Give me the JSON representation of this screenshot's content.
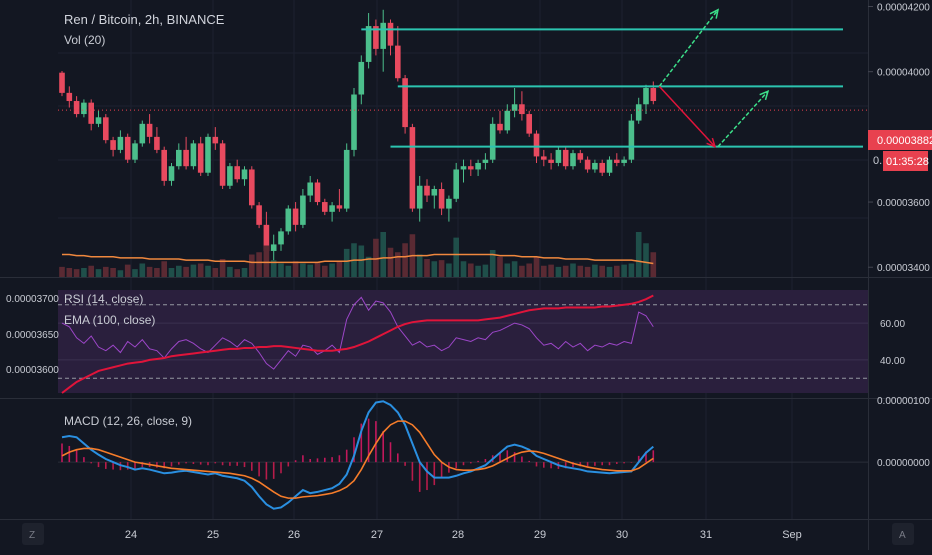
{
  "header": {
    "title": "Ren / Bitcoin, 2h, BINANCE",
    "volume_label": "Vol (20)"
  },
  "price_axis": {
    "ticks": [
      "0.00004200",
      "0.00004000",
      "0.00003600",
      "0.00003400"
    ],
    "current_price": "0.00003882",
    "countdown": "01:35:28",
    "countdown_prefix": "0."
  },
  "rsi": {
    "label": "RSI (14, close)",
    "ema_label": "EMA (100, close)",
    "right_ticks": [
      "60.00",
      "40.00"
    ],
    "left_ticks": [
      "0.00003700",
      "0.00003650",
      "0.00003600"
    ]
  },
  "macd": {
    "label": "MACD (12, 26, close, 9)",
    "ticks": [
      "0.00000100",
      "0.00000000"
    ]
  },
  "time_axis": {
    "labels": [
      "24",
      "25",
      "26",
      "27",
      "28",
      "29",
      "30",
      "31",
      "Sep"
    ]
  },
  "footer": {
    "left_button": "Z",
    "right_button": "A"
  },
  "colors": {
    "up": "#26a69a",
    "down": "#ef5350",
    "up_strong": "#4cbf8c",
    "down_strong": "#e84a5f",
    "rsi_line": "#9c46c8",
    "ema_line": "#e0143a",
    "macd_line": "#2a8fe0",
    "signal_line": "#f57c2a",
    "drawing_cyan": "#2cc4b0",
    "drawing_green": "#3ce08a",
    "drawing_red": "#e0143a",
    "current_price_bg": "#e8414f"
  },
  "chart_data": [
    {
      "type": "candlestick",
      "title": "Ren / Bitcoin, 2h, BINANCE",
      "x_range": [
        "23",
        "Sep 1"
      ],
      "ylim": [
        3.37e-05,
        4.22e-05
      ],
      "current_price": 3.882e-05,
      "ohlc": [
        [
          3.997e-05,
          4.002e-05,
          3.925e-05,
          3.935e-05
        ],
        [
          3.935e-05,
          3.955e-05,
          3.89e-05,
          3.91e-05
        ],
        [
          3.91e-05,
          3.925e-05,
          3.86e-05,
          3.87e-05
        ],
        [
          3.87e-05,
          3.915e-05,
          3.86e-05,
          3.905e-05
        ],
        [
          3.905e-05,
          3.915e-05,
          3.82e-05,
          3.84e-05
        ],
        [
          3.84e-05,
          3.88e-05,
          3.83e-05,
          3.86e-05
        ],
        [
          3.86e-05,
          3.87e-05,
          3.78e-05,
          3.79e-05
        ],
        [
          3.79e-05,
          3.8e-05,
          3.74e-05,
          3.76e-05
        ],
        [
          3.76e-05,
          3.82e-05,
          3.75e-05,
          3.8e-05
        ],
        [
          3.8e-05,
          3.81e-05,
          3.72e-05,
          3.73e-05
        ],
        [
          3.73e-05,
          3.79e-05,
          3.72e-05,
          3.78e-05
        ],
        [
          3.78e-05,
          3.85e-05,
          3.77e-05,
          3.84e-05
        ],
        [
          3.84e-05,
          3.87e-05,
          3.78e-05,
          3.8e-05
        ],
        [
          3.8e-05,
          3.83e-05,
          3.75e-05,
          3.76e-05
        ],
        [
          3.76e-05,
          3.77e-05,
          3.65e-05,
          3.665e-05
        ],
        [
          3.665e-05,
          3.72e-05,
          3.65e-05,
          3.71e-05
        ],
        [
          3.71e-05,
          3.78e-05,
          3.7e-05,
          3.76e-05
        ],
        [
          3.76e-05,
          3.8e-05,
          3.7e-05,
          3.71e-05
        ],
        [
          3.71e-05,
          3.79e-05,
          3.7e-05,
          3.78e-05
        ],
        [
          3.78e-05,
          3.8e-05,
          3.68e-05,
          3.69e-05
        ],
        [
          3.69e-05,
          3.81e-05,
          3.68e-05,
          3.8e-05
        ],
        [
          3.8e-05,
          3.83e-05,
          3.76e-05,
          3.78e-05
        ],
        [
          3.78e-05,
          3.79e-05,
          3.64e-05,
          3.65e-05
        ],
        [
          3.65e-05,
          3.72e-05,
          3.64e-05,
          3.71e-05
        ],
        [
          3.71e-05,
          3.73e-05,
          3.66e-05,
          3.67e-05
        ],
        [
          3.67e-05,
          3.71e-05,
          3.65e-05,
          3.7e-05
        ],
        [
          3.7e-05,
          3.71e-05,
          3.58e-05,
          3.59e-05
        ],
        [
          3.59e-05,
          3.6e-05,
          3.52e-05,
          3.53e-05
        ],
        [
          3.53e-05,
          3.57e-05,
          3.44e-05,
          3.45e-05
        ],
        [
          3.45e-05,
          3.5e-05,
          3.4e-05,
          3.47e-05
        ],
        [
          3.47e-05,
          3.52e-05,
          3.45e-05,
          3.51e-05
        ],
        [
          3.51e-05,
          3.59e-05,
          3.5e-05,
          3.58e-05
        ],
        [
          3.58e-05,
          3.6e-05,
          3.51e-05,
          3.53e-05
        ],
        [
          3.53e-05,
          3.64e-05,
          3.52e-05,
          3.62e-05
        ],
        [
          3.62e-05,
          3.68e-05,
          3.6e-05,
          3.66e-05
        ],
        [
          3.66e-05,
          3.67e-05,
          3.59e-05,
          3.6e-05
        ],
        [
          3.6e-05,
          3.61e-05,
          3.56e-05,
          3.57e-05
        ],
        [
          3.57e-05,
          3.6e-05,
          3.54e-05,
          3.59e-05
        ],
        [
          3.59e-05,
          3.64e-05,
          3.57e-05,
          3.58e-05
        ],
        [
          3.58e-05,
          3.78e-05,
          3.57e-05,
          3.76e-05
        ],
        [
          3.76e-05,
          3.95e-05,
          3.74e-05,
          3.93e-05
        ],
        [
          3.93e-05,
          4.05e-05,
          3.9e-05,
          4.03e-05
        ],
        [
          4.03e-05,
          4.18e-05,
          4.01e-05,
          4.14e-05
        ],
        [
          4.14e-05,
          4.16e-05,
          4.05e-05,
          4.07e-05
        ],
        [
          4.07e-05,
          4.19e-05,
          4e-05,
          4.15e-05
        ],
        [
          4.15e-05,
          4.16e-05,
          4.05e-05,
          4.08e-05
        ],
        [
          4.08e-05,
          4.14e-05,
          3.97e-05,
          3.98e-05
        ],
        [
          3.98e-05,
          3.99e-05,
          3.81e-05,
          3.83e-05
        ],
        [
          3.83e-05,
          3.84e-05,
          3.57e-05,
          3.58e-05
        ],
        [
          3.58e-05,
          3.68e-05,
          3.54e-05,
          3.65e-05
        ],
        [
          3.65e-05,
          3.67e-05,
          3.6e-05,
          3.62e-05
        ],
        [
          3.62e-05,
          3.65e-05,
          3.58e-05,
          3.64e-05
        ],
        [
          3.64e-05,
          3.66e-05,
          3.56e-05,
          3.58e-05
        ],
        [
          3.58e-05,
          3.62e-05,
          3.54e-05,
          3.61e-05
        ],
        [
          3.61e-05,
          3.72e-05,
          3.6e-05,
          3.7e-05
        ],
        [
          3.7e-05,
          3.73e-05,
          3.66e-05,
          3.71e-05
        ],
        [
          3.71e-05,
          3.73e-05,
          3.68e-05,
          3.7e-05
        ],
        [
          3.7e-05,
          3.73e-05,
          3.68e-05,
          3.72e-05
        ],
        [
          3.72e-05,
          3.75e-05,
          3.7e-05,
          3.73e-05
        ],
        [
          3.73e-05,
          3.86e-05,
          3.72e-05,
          3.84e-05
        ],
        [
          3.84e-05,
          3.88e-05,
          3.81e-05,
          3.82e-05
        ],
        [
          3.82e-05,
          3.9e-05,
          3.81e-05,
          3.88e-05
        ],
        [
          3.88e-05,
          3.95e-05,
          3.86e-05,
          3.9e-05
        ],
        [
          3.9e-05,
          3.94e-05,
          3.85e-05,
          3.87e-05
        ],
        [
          3.87e-05,
          3.88e-05,
          3.8e-05,
          3.81e-05
        ],
        [
          3.81e-05,
          3.82e-05,
          3.72e-05,
          3.74e-05
        ],
        [
          3.74e-05,
          3.76e-05,
          3.71e-05,
          3.73e-05
        ],
        [
          3.73e-05,
          3.75e-05,
          3.7e-05,
          3.72e-05
        ],
        [
          3.72e-05,
          3.77e-05,
          3.71e-05,
          3.76e-05
        ],
        [
          3.76e-05,
          3.77e-05,
          3.7e-05,
          3.71e-05
        ],
        [
          3.71e-05,
          3.76e-05,
          3.7e-05,
          3.75e-05
        ],
        [
          3.75e-05,
          3.76e-05,
          3.72e-05,
          3.73e-05
        ],
        [
          3.73e-05,
          3.74e-05,
          3.69e-05,
          3.7e-05
        ],
        [
          3.7e-05,
          3.73e-05,
          3.69e-05,
          3.72e-05
        ],
        [
          3.72e-05,
          3.73e-05,
          3.68e-05,
          3.69e-05
        ],
        [
          3.69e-05,
          3.74e-05,
          3.68e-05,
          3.73e-05
        ],
        [
          3.73e-05,
          3.75e-05,
          3.71e-05,
          3.72e-05
        ],
        [
          3.72e-05,
          3.74e-05,
          3.71e-05,
          3.73e-05
        ],
        [
          3.73e-05,
          3.87e-05,
          3.72e-05,
          3.85e-05
        ],
        [
          3.85e-05,
          3.92e-05,
          3.84e-05,
          3.9e-05
        ],
        [
          3.9e-05,
          3.96e-05,
          3.87e-05,
          3.95e-05
        ],
        [
          3.95e-05,
          3.97e-05,
          3.9e-05,
          3.91e-05
        ]
      ],
      "volume": [
        9,
        8,
        7,
        8,
        10,
        7,
        9,
        8,
        6,
        11,
        7,
        12,
        9,
        8,
        14,
        8,
        10,
        9,
        11,
        12,
        10,
        8,
        16,
        9,
        7,
        8,
        20,
        22,
        28,
        15,
        12,
        10,
        14,
        12,
        11,
        13,
        10,
        12,
        14,
        25,
        30,
        28,
        18,
        34,
        40,
        26,
        22,
        30,
        38,
        20,
        16,
        14,
        15,
        12,
        35,
        14,
        12,
        10,
        11,
        24,
        18,
        12,
        14,
        10,
        12,
        18,
        10,
        11,
        9,
        10,
        12,
        10,
        9,
        11,
        10,
        9,
        10,
        11,
        12,
        40,
        30,
        22
      ],
      "volume_ma": [
        20,
        20,
        19,
        19,
        18,
        18,
        18,
        18,
        17,
        17,
        17,
        17,
        16,
        16,
        16,
        16,
        16,
        15,
        15,
        15,
        15,
        14,
        14,
        14,
        14,
        14,
        13,
        13,
        13,
        13,
        13,
        13,
        13,
        13,
        13,
        13,
        14,
        14,
        14,
        14,
        15,
        15,
        16,
        16,
        17,
        17,
        18,
        18,
        19,
        19,
        19,
        20,
        20,
        20,
        20,
        20,
        20,
        20,
        20,
        20,
        19,
        19,
        19,
        18,
        18,
        18,
        17,
        17,
        17,
        16,
        16,
        16,
        16,
        15,
        15,
        15,
        15,
        15,
        15,
        14,
        13,
        12
      ],
      "drawings": {
        "horizontal_levels": [
          4.13e-05,
          3.955e-05,
          3.77e-05
        ],
        "projection_up": [
          [
            3.955e-05,
            4.19e-05
          ]
        ],
        "projection_down": [
          [
            3.955e-05,
            3.77e-05
          ]
        ],
        "projection_up_from_support": [
          [
            3.77e-05,
            3.94e-05
          ]
        ]
      }
    },
    {
      "type": "line",
      "title": "RSI (14, close)",
      "ylim": [
        22,
        78
      ],
      "levels": [
        70,
        30
      ],
      "series": [
        {
          "name": "RSI (14, close)",
          "values": [
            60,
            58,
            52,
            49,
            53,
            47,
            45,
            48,
            44,
            50,
            47,
            51,
            46,
            45,
            41,
            46,
            50,
            51,
            49,
            46,
            44,
            48,
            52,
            50,
            47,
            51,
            49,
            44,
            38,
            35,
            40,
            45,
            42,
            48,
            47,
            43,
            45,
            48,
            44,
            62,
            70,
            74,
            67,
            72,
            71,
            66,
            58,
            53,
            48,
            50,
            47,
            48,
            45,
            47,
            52,
            51,
            50,
            52,
            51,
            55,
            56,
            58,
            60,
            59,
            57,
            52,
            48,
            49,
            46,
            50,
            47,
            49,
            45,
            48,
            47,
            49,
            48,
            50,
            49,
            66,
            64,
            58
          ]
        },
        {
          "name": "EMA (100, close)",
          "values": [
            22,
            25,
            28,
            30,
            32,
            34,
            35,
            36,
            37,
            38,
            38.5,
            39,
            40,
            40.5,
            41,
            42,
            42.5,
            43,
            43.5,
            44,
            44.5,
            45,
            45.5,
            46,
            46,
            46.5,
            46.5,
            47,
            47,
            47.5,
            47.5,
            47,
            46.5,
            46,
            45.5,
            45,
            45,
            45,
            45.5,
            46,
            47,
            48.5,
            50,
            52,
            54,
            56,
            58,
            59.5,
            60.5,
            61,
            61.5,
            61.5,
            61.5,
            61.5,
            61.5,
            61.5,
            61.5,
            61.5,
            62,
            62.5,
            63,
            64,
            65,
            66,
            67,
            67.5,
            68,
            68,
            68,
            68.5,
            68.5,
            68.5,
            68.5,
            68.5,
            69,
            69,
            69.5,
            70,
            70.5,
            71.5,
            73,
            75
          ]
        }
      ]
    },
    {
      "type": "line",
      "title": "MACD (12, 26, close, 9)",
      "ylim": [
        -9e-07,
        1e-06
      ],
      "series": [
        {
          "name": "MACD",
          "values": [
            4e-07,
            4.2e-07,
            4e-07,
            3e-07,
            2e-07,
            1.2e-07,
            5e-08,
            0.0,
            -5e-08,
            -8e-08,
            -1.2e-07,
            -1e-07,
            -1.2e-07,
            -1.5e-07,
            -1.8e-07,
            -1.7e-07,
            -1.5e-07,
            -1.4e-07,
            -1.6e-07,
            -1.8e-07,
            -2e-07,
            -1.8e-07,
            -2.2e-07,
            -2.4e-07,
            -2.6e-07,
            -3e-07,
            -4e-07,
            -5.5e-07,
            -6.8e-07,
            -7.5e-07,
            -7.3e-07,
            -6.5e-07,
            -5.5e-07,
            -4.5e-07,
            -5e-07,
            -4.8e-07,
            -4.5e-07,
            -4.2e-07,
            -3.5e-07,
            -2e-07,
            1e-07,
            5e-07,
            8e-07,
            9.6e-07,
            9.8e-07,
            9.2e-07,
            8e-07,
            6e-07,
            3e-07,
            0.0,
            -1.5e-07,
            -2.5e-07,
            -2.5e-07,
            -2.5e-07,
            -2.2e-07,
            -1.8e-07,
            -1.5e-07,
            -1e-07,
            -5e-08,
            5e-08,
            1.5e-07,
            2.5e-07,
            2.8e-07,
            2.5e-07,
            2e-07,
            1e-07,
            5e-08,
            0.0,
            -5e-08,
            -8e-08,
            -1e-07,
            -1.2e-07,
            -1.5e-07,
            -1.6e-07,
            -1.7e-07,
            -1.8e-07,
            -1.7e-07,
            -1.6e-07,
            -1.5e-07,
            0.0,
            1.5e-07,
            2.5e-07
          ]
        },
        {
          "name": "Signal",
          "values": [
            1e-07,
            1.6e-07,
            2e-07,
            2.2e-07,
            2.2e-07,
            2e-07,
            1.6e-07,
            1.2e-07,
            8e-08,
            4e-08,
            0.0,
            -2e-08,
            -4e-08,
            -6e-08,
            -8e-08,
            -1e-07,
            -1.1e-07,
            -1.2e-07,
            -1.3e-07,
            -1.4e-07,
            -1.5e-07,
            -1.6e-07,
            -1.7e-07,
            -1.8e-07,
            -2e-07,
            -2.2e-07,
            -2.6e-07,
            -3.2e-07,
            -4e-07,
            -4.8e-07,
            -5.5e-07,
            -5.8e-07,
            -5.8e-07,
            -5.6e-07,
            -5.5e-07,
            -5.4e-07,
            -5.2e-07,
            -5e-07,
            -4.6e-07,
            -4e-07,
            -3e-07,
            -1.2e-07,
            1e-07,
            3e-07,
            4.8e-07,
            6e-07,
            6.6e-07,
            6.6e-07,
            6e-07,
            4.8e-07,
            3e-07,
            1.2e-07,
            0.0,
            -8e-08,
            -1.2e-07,
            -1.3e-07,
            -1.3e-07,
            -1.2e-07,
            -1e-07,
            -6e-08,
            0.0,
            6e-08,
            1.2e-07,
            1.6e-07,
            1.8e-07,
            1.7e-07,
            1.4e-07,
            1e-07,
            6e-08,
            2e-08,
            -2e-08,
            -5e-08,
            -8e-08,
            -1e-07,
            -1.2e-07,
            -1.3e-07,
            -1.4e-07,
            -1.4e-07,
            -1.4e-07,
            -1e-07,
            -2e-08,
            6e-08
          ]
        }
      ]
    }
  ]
}
